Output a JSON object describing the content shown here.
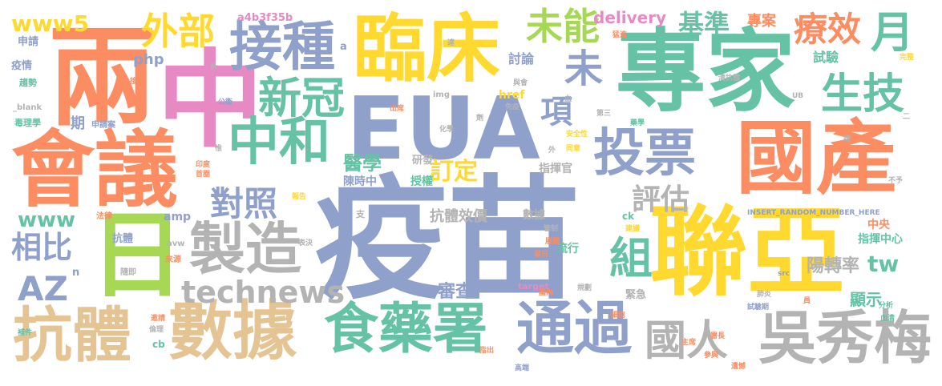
{
  "palette": {
    "blue": "#8fa0cb",
    "green": "#66c2a5",
    "orange": "#fc8d62",
    "pink": "#e78ac3",
    "yellow": "#ffd92f",
    "lime": "#a6d854",
    "tan": "#e5c494",
    "gray": "#b3b3b3"
  },
  "words": [
    {
      "text": "疫苗",
      "color": "blue"
    },
    {
      "text": "EUA",
      "color": "blue"
    },
    {
      "text": "專家",
      "color": "green"
    },
    {
      "text": "聯亞",
      "color": "yellow"
    },
    {
      "text": "國產",
      "color": "orange"
    },
    {
      "text": "會議",
      "color": "orange"
    },
    {
      "text": "臨床",
      "color": "yellow"
    },
    {
      "text": "兩",
      "color": "orange"
    },
    {
      "text": "中",
      "color": "pink"
    },
    {
      "text": "日",
      "color": "lime"
    },
    {
      "text": "接種",
      "color": "blue"
    },
    {
      "text": "數據",
      "color": "tan"
    },
    {
      "text": "抗體",
      "color": "tan"
    },
    {
      "text": "食藥署",
      "color": "green"
    },
    {
      "text": "通過",
      "color": "blue"
    },
    {
      "text": "吳秀梅",
      "color": "gray"
    },
    {
      "text": "製造",
      "color": "gray"
    },
    {
      "text": "中和",
      "color": "green"
    },
    {
      "text": "投票",
      "color": "blue"
    },
    {
      "text": "新冠",
      "color": "green"
    },
    {
      "text": "生技",
      "color": "green"
    },
    {
      "text": "國人",
      "color": "gray"
    },
    {
      "text": "外部",
      "color": "yellow"
    },
    {
      "text": "未能",
      "color": "lime"
    },
    {
      "text": "療效",
      "color": "orange"
    },
    {
      "text": "月",
      "color": "green"
    },
    {
      "text": "基準",
      "color": "green"
    },
    {
      "text": "對照",
      "color": "blue"
    },
    {
      "text": "AZ",
      "color": "blue"
    },
    {
      "text": "相比",
      "color": "blue"
    },
    {
      "text": "technews",
      "color": "gray"
    },
    {
      "text": "組",
      "color": "green"
    },
    {
      "text": "未",
      "color": "blue"
    },
    {
      "text": "項",
      "color": "blue"
    },
    {
      "text": "訂定",
      "color": "yellow"
    },
    {
      "text": "評估",
      "color": "gray"
    },
    {
      "text": "醫學",
      "color": "green"
    },
    {
      "text": "www5",
      "color": "yellow"
    },
    {
      "text": "www",
      "color": "green"
    },
    {
      "text": "tw",
      "color": "green"
    },
    {
      "text": "delivery",
      "color": "pink"
    },
    {
      "text": "專案",
      "color": "orange"
    },
    {
      "text": "試驗",
      "color": "green"
    },
    {
      "text": "討論",
      "color": "blue"
    },
    {
      "text": "php",
      "color": "blue"
    },
    {
      "text": "審查",
      "color": "blue"
    },
    {
      "text": "陽轉率",
      "color": "gray"
    },
    {
      "text": "顯示",
      "color": "green"
    },
    {
      "text": "抗體效價",
      "color": "gray"
    },
    {
      "text": "數據",
      "color": "gray"
    },
    {
      "text": "指揮官",
      "color": "gray"
    },
    {
      "text": "陳時中",
      "color": "blue"
    },
    {
      "text": "研發",
      "color": "gray"
    },
    {
      "text": "授權",
      "color": "green"
    },
    {
      "text": "指揮中心",
      "color": "green"
    },
    {
      "text": "中央",
      "color": "orange"
    },
    {
      "text": "流行",
      "color": "green"
    },
    {
      "text": "緊急",
      "color": "gray"
    },
    {
      "text": "a4b3f35b",
      "color": "pink"
    },
    {
      "text": "申請",
      "color": "blue"
    },
    {
      "text": "疫情",
      "color": "blue"
    },
    {
      "text": "趨勢",
      "color": "green"
    },
    {
      "text": "_blank",
      "color": "gray"
    },
    {
      "text": "毒理學",
      "color": "green"
    },
    {
      "text": "期",
      "color": "blue"
    },
    {
      "text": "申請案",
      "color": "blue"
    },
    {
      "text": "href",
      "color": "yellow"
    },
    {
      "text": "img",
      "color": "gray"
    },
    {
      "text": "amp",
      "color": "blue"
    },
    {
      "text": "ck",
      "color": "green"
    },
    {
      "text": "target",
      "color": "pink"
    },
    {
      "text": "cb",
      "color": "green"
    },
    {
      "text": "avw",
      "color": "gray"
    },
    {
      "text": "n",
      "color": "blue"
    },
    {
      "text": "抗體",
      "color": "blue"
    },
    {
      "text": "隨即",
      "color": "gray"
    },
    {
      "text": "法律",
      "color": "orange"
    },
    {
      "text": "報告",
      "color": "yellow"
    },
    {
      "text": "印度",
      "color": "orange"
    },
    {
      "text": "首圈",
      "color": "orange"
    },
    {
      "text": "來源",
      "color": "orange"
    },
    {
      "text": "表決",
      "color": "gray"
    },
    {
      "text": "管制",
      "color": "gray"
    },
    {
      "text": "展開",
      "color": "orange"
    },
    {
      "text": "當日",
      "color": "orange"
    },
    {
      "text": "國內",
      "color": "orange"
    },
    {
      "text": "規劃",
      "color": "gray"
    },
    {
      "text": "細胞",
      "color": "orange"
    },
    {
      "text": "肺炎",
      "color": "gray"
    },
    {
      "text": "試驗期",
      "color": "blue"
    },
    {
      "text": "分析",
      "color": "green"
    },
    {
      "text": "血清",
      "color": "green"
    },
    {
      "text": "補件",
      "color": "green"
    },
    {
      "text": "邀請",
      "color": "orange"
    },
    {
      "text": "倫理",
      "color": "gray"
    },
    {
      "text": "指出",
      "color": "orange"
    },
    {
      "text": "高端",
      "color": "blue"
    },
    {
      "text": "署長",
      "color": "orange"
    },
    {
      "text": "主席",
      "color": "orange"
    },
    {
      "text": "參與",
      "color": "orange"
    },
    {
      "text": "遺憾",
      "color": "orange"
    },
    {
      "text": "INSERT_RANDOM_NUMBER_HERE",
      "color": "blue"
    },
    {
      "text": "不予",
      "color": "gray"
    },
    {
      "text": "建議",
      "color": "yellow"
    },
    {
      "text": "員",
      "color": "orange"
    },
    {
      "text": "src",
      "color": "blue"
    },
    {
      "text": "藥學",
      "color": "green"
    },
    {
      "text": "安全性",
      "color": "yellow"
    },
    {
      "text": "同意",
      "color": "yellow"
    },
    {
      "text": "第三",
      "color": "gray"
    },
    {
      "text": "化學",
      "color": "gray"
    },
    {
      "text": "出席",
      "color": "orange"
    },
    {
      "text": "劑",
      "color": "gray"
    },
    {
      "text": "免疫",
      "color": "gray"
    },
    {
      "text": "與會",
      "color": "gray"
    },
    {
      "text": "血",
      "color": "gray"
    },
    {
      "text": "達",
      "color": "gray"
    },
    {
      "text": "猛進",
      "color": "orange"
    },
    {
      "text": "完整",
      "color": "yellow"
    },
    {
      "text": "清抗體",
      "color": "gray"
    },
    {
      "text": "公衛",
      "color": "blue"
    },
    {
      "text": "接受",
      "color": "orange"
    },
    {
      "text": "款",
      "color": "orange"
    },
    {
      "text": "計",
      "color": "gray"
    },
    {
      "text": "a",
      "color": "blue"
    },
    {
      "text": "支",
      "color": "gray"
    },
    {
      "text": "外",
      "color": "gray"
    },
    {
      "text": "惟",
      "color": "gray"
    },
    {
      "text": "二",
      "color": "gray"
    },
    {
      "text": "UB",
      "color": "gray"
    },
    {
      "text": "請",
      "color": "gray"
    }
  ]
}
